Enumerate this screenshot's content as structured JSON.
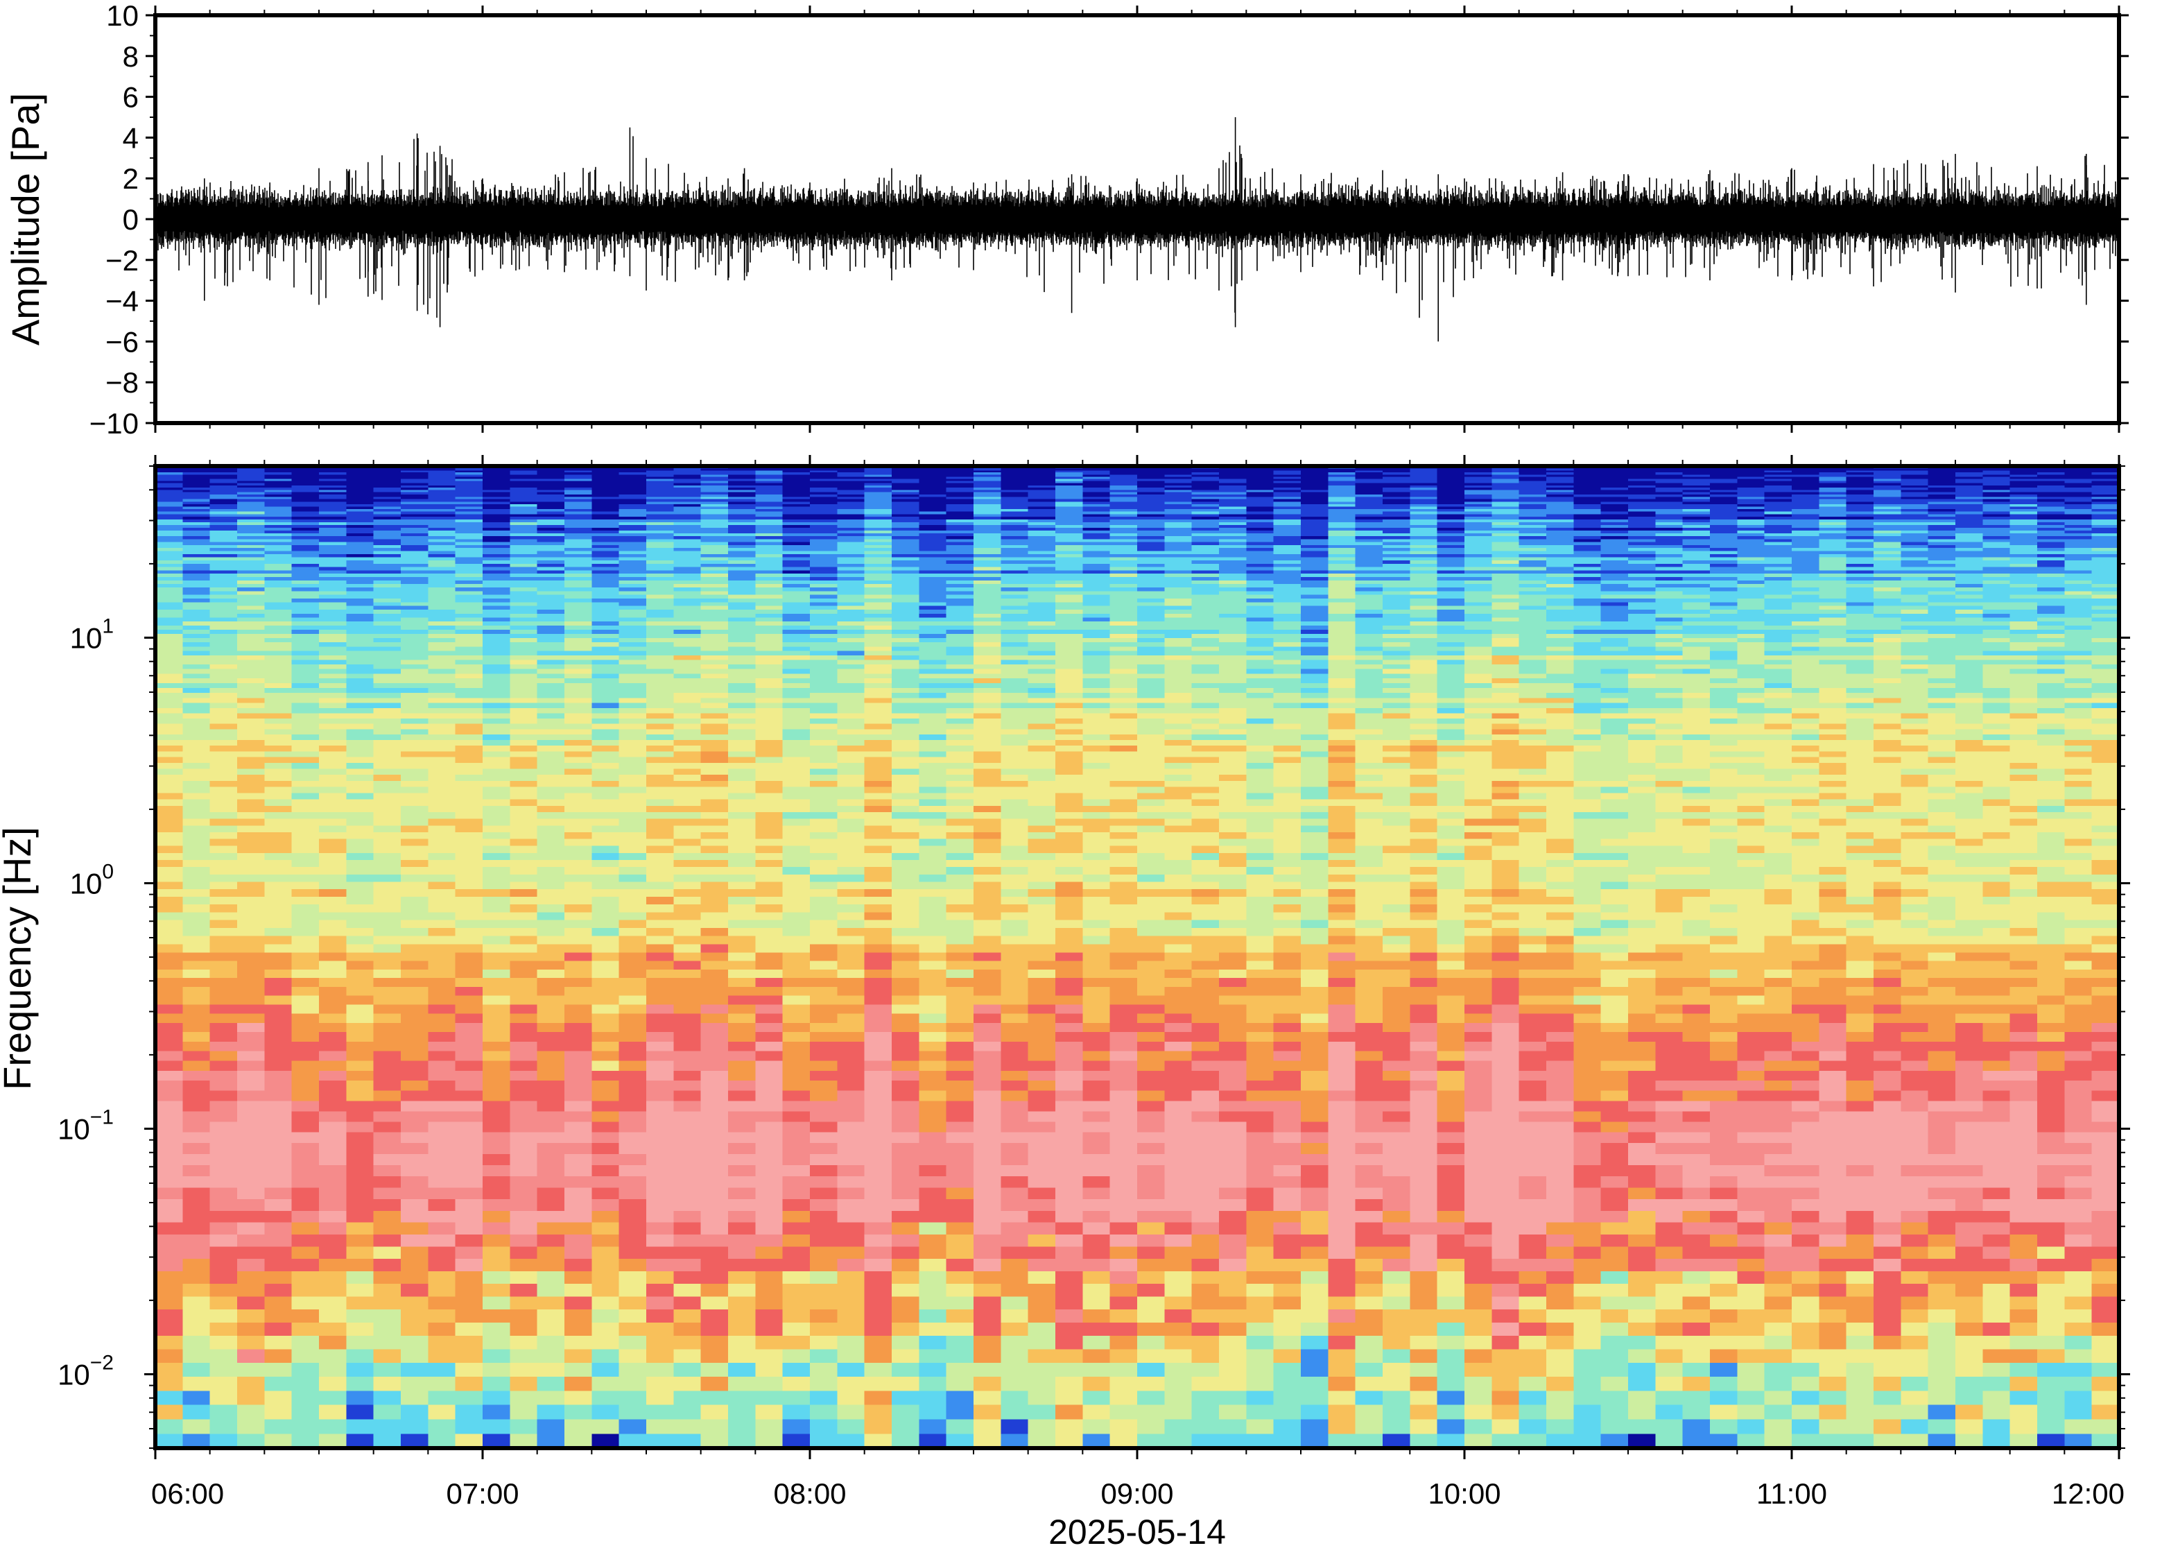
{
  "colors": {
    "frame": "#000000",
    "waveform": "#000000",
    "background": "#ffffff",
    "colormap": [
      "#0a0a9c",
      "#1f3fd6",
      "#3a8ef0",
      "#5ed7f0",
      "#8ce8c8",
      "#cdeea0",
      "#f1ec8c",
      "#f8c05a",
      "#f59a48",
      "#f06060",
      "#f58b8b",
      "#f8a6a6"
    ]
  },
  "chart_data": [
    {
      "type": "line",
      "name": "waveform",
      "title": "",
      "xlabel": "",
      "ylabel": "Amplitude [Pa]",
      "ylim": [
        -10,
        10
      ],
      "yticks": [
        -10,
        -8,
        -6,
        -4,
        -2,
        0,
        2,
        4,
        6,
        8,
        10
      ],
      "ytick_labels": [
        "−10",
        "−8",
        "−6",
        "−4",
        "−2",
        "0",
        "2",
        "4",
        "6",
        "8",
        "10"
      ],
      "xlim": [
        "06:00",
        "12:00"
      ],
      "grid": false,
      "x_hours": [
        6.0,
        6.15,
        6.35,
        6.5,
        6.65,
        6.8,
        6.87,
        7.0,
        7.25,
        7.45,
        7.5,
        7.75,
        7.8,
        8.0,
        8.25,
        8.5,
        8.8,
        9.0,
        9.25,
        9.3,
        9.32,
        9.5,
        9.75,
        9.92,
        10.0,
        10.3,
        10.5,
        10.75,
        11.0,
        11.25,
        11.5,
        11.75,
        11.9,
        12.0
      ],
      "envelope_max": [
        1.2,
        2.0,
        1.8,
        2.5,
        2.8,
        4.2,
        3.6,
        2.0,
        2.3,
        4.5,
        3.0,
        2.0,
        2.5,
        1.8,
        2.5,
        1.8,
        2.2,
        2.0,
        2.5,
        5.0,
        3.0,
        2.2,
        2.4,
        2.2,
        2.0,
        2.3,
        2.2,
        2.4,
        2.5,
        2.7,
        3.2,
        2.6,
        3.2,
        3.0
      ],
      "envelope_min": [
        -1.5,
        -4.0,
        -3.0,
        -4.2,
        -3.8,
        -4.5,
        -5.3,
        -2.5,
        -2.6,
        -2.8,
        -3.5,
        -3.0,
        -3.0,
        -2.5,
        -3.0,
        -2.5,
        -4.6,
        -3.0,
        -3.5,
        -5.3,
        -3.0,
        -2.6,
        -3.0,
        -6.0,
        -3.0,
        -3.0,
        -2.8,
        -3.0,
        -3.0,
        -3.3,
        -3.6,
        -3.4,
        -4.2,
        -4.0
      ]
    },
    {
      "type": "heatmap",
      "name": "spectrogram",
      "title": "",
      "xlabel": "2025-05-14",
      "ylabel": "Frequency [Hz]",
      "y_scale": "log",
      "ylim": [
        0.005,
        50
      ],
      "yticks": [
        0.01,
        0.1,
        1,
        10
      ],
      "ytick_base": [
        "10",
        "10",
        "10",
        "10"
      ],
      "ytick_exponents": [
        "−2",
        "−1",
        "0",
        "1"
      ],
      "xlim": [
        "06:00",
        "12:00"
      ],
      "xticks": [
        "06:00",
        "07:00",
        "08:00",
        "09:00",
        "10:00",
        "11:00",
        "12:00"
      ],
      "grid": false,
      "description_of_power_vs_frequency": {
        "frequencies_hz": [
          0.006,
          0.01,
          0.02,
          0.04,
          0.08,
          0.15,
          0.3,
          0.6,
          1,
          3,
          6,
          10,
          20,
          35,
          50
        ],
        "colormap_index": [
          4.3,
          5.2,
          7.6,
          10.0,
          10.8,
          9.8,
          8.3,
          6.3,
          6.0,
          5.9,
          5.0,
          4.1,
          2.6,
          1.1,
          0.1
        ]
      }
    }
  ]
}
